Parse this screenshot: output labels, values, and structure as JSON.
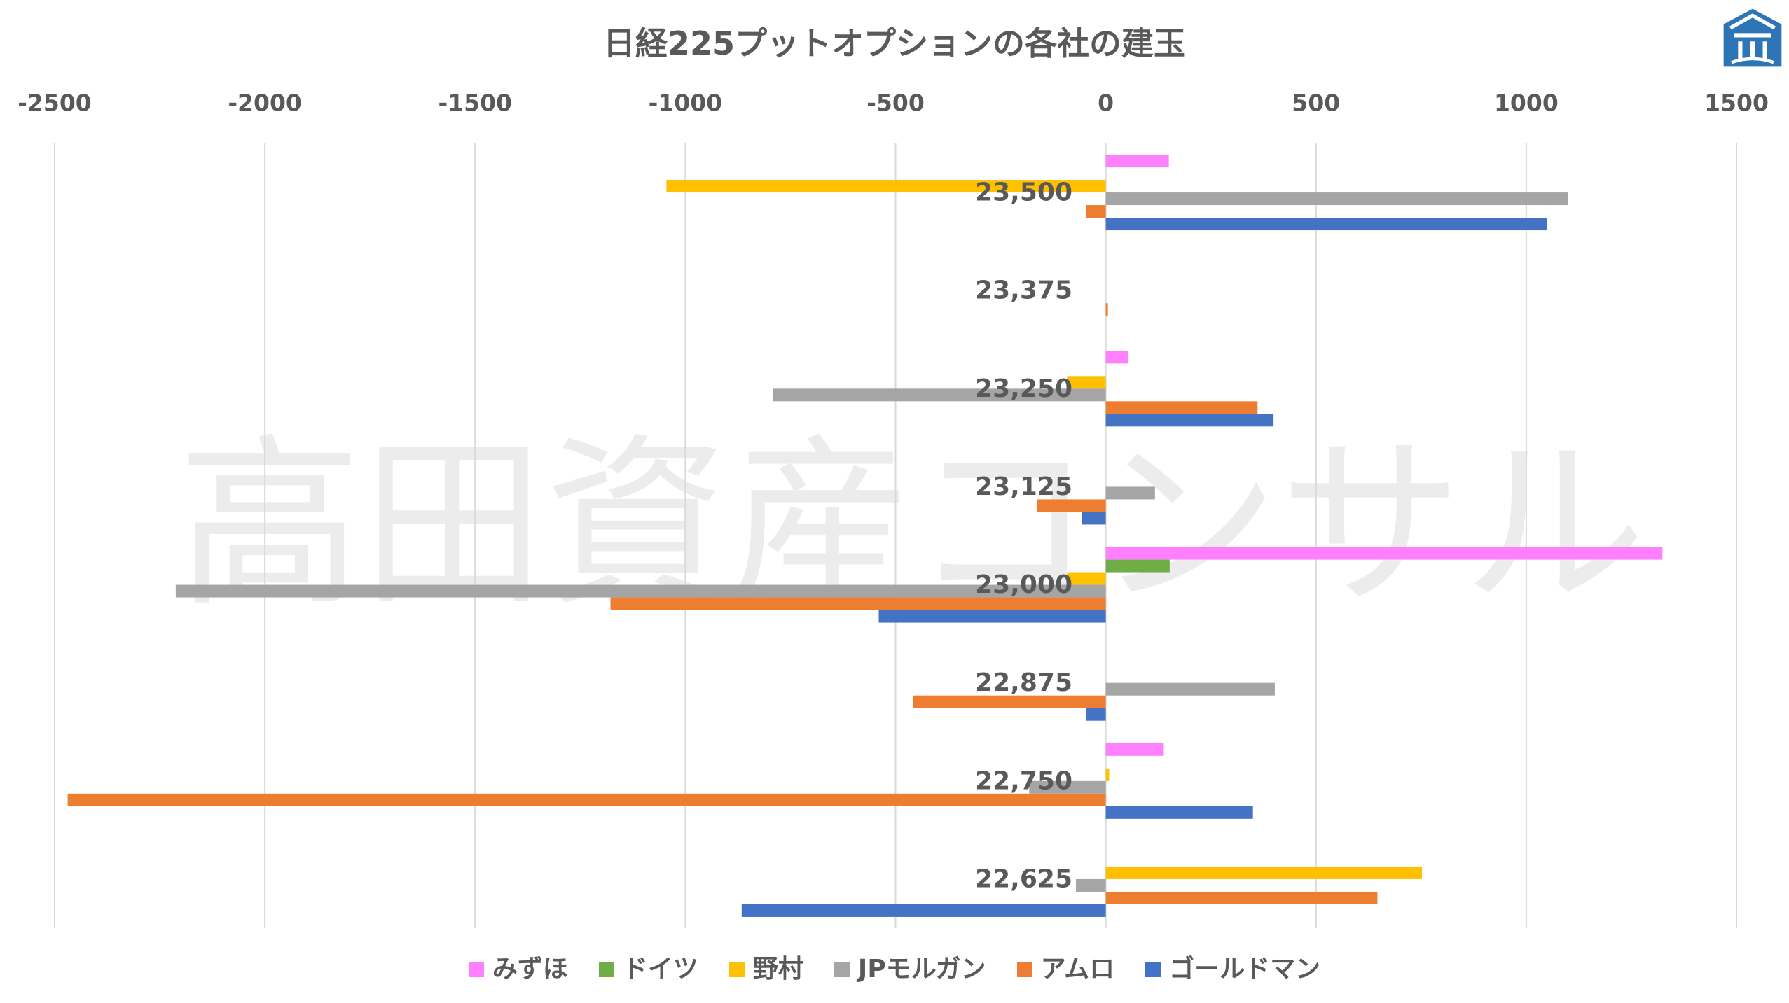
{
  "watermark": "高田資産コンサル",
  "logo": {
    "icon": "logo-icon",
    "color": "#2E75B6"
  },
  "text_color": "#595959",
  "gridline_color": "#D9D9D9",
  "chart_data": {
    "type": "bar",
    "orientation": "horizontal",
    "title": "日経225プットオプションの各社の建玉",
    "xlabel": "",
    "ylabel": "",
    "axis_position": "top",
    "xlim": [
      -2500,
      1500
    ],
    "xticks": [
      -2500,
      -2000,
      -1500,
      -1000,
      -500,
      0,
      500,
      1000,
      1500
    ],
    "grid": true,
    "legend": "bottom",
    "categories": [
      "23,500",
      "23,375",
      "23,250",
      "23,125",
      "23,000",
      "22,875",
      "22,750",
      "22,625"
    ],
    "series": [
      {
        "name": "みずほ",
        "color": "#FF80FF",
        "values": [
          150,
          0,
          54,
          0,
          1324,
          0,
          138,
          0
        ]
      },
      {
        "name": "ドイツ",
        "color": "#70AD47",
        "values": [
          0,
          0,
          0,
          0,
          152,
          0,
          0,
          0
        ]
      },
      {
        "name": "野村",
        "color": "#FFC000",
        "values": [
          -1045,
          0,
          -92,
          0,
          -92,
          0,
          8,
          752
        ]
      },
      {
        "name": "JPモルガン",
        "color": "#A5A5A5",
        "values": [
          1100,
          0,
          -792,
          117,
          -2212,
          402,
          -182,
          -71
        ]
      },
      {
        "name": "アムロ",
        "color": "#ED7D31",
        "values": [
          -46,
          5,
          361,
          -163,
          -1178,
          -459,
          -2469,
          646
        ]
      },
      {
        "name": "ゴールドマン",
        "color": "#4472C4",
        "values": [
          1050,
          0,
          399,
          -57,
          -540,
          -46,
          350,
          -866
        ]
      }
    ]
  }
}
